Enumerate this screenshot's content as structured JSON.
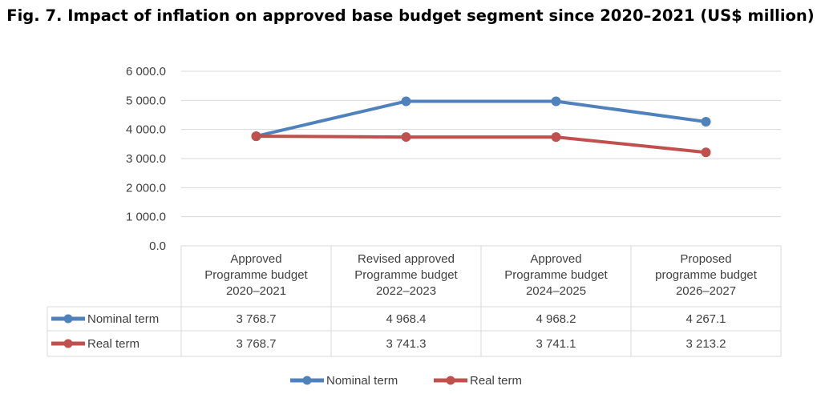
{
  "title": "Fig. 7. Impact of inflation on approved base budget segment since 2020–2021 (US$ million)",
  "chart_data": {
    "type": "line",
    "title": "Fig. 7. Impact of inflation on approved base budget segment since 2020–2021 (US$ million)",
    "categories": [
      [
        "Approved",
        "Programme budget",
        "2020–2021"
      ],
      [
        "Revised approved",
        "Programme budget",
        "2022–2023"
      ],
      [
        "Approved",
        "Programme budget",
        "2024–2025"
      ],
      [
        "Proposed",
        "programme budget",
        "2026–2027"
      ]
    ],
    "series": [
      {
        "name": "Nominal term",
        "color": "#4F81BD",
        "values": [
          3768.7,
          4968.4,
          4968.2,
          4267.1
        ],
        "labels": [
          "3 768.7",
          "4 968.4",
          "4 968.2",
          "4 267.1"
        ]
      },
      {
        "name": "Real term",
        "color": "#C0504D",
        "values": [
          3768.7,
          3741.3,
          3741.1,
          3213.2
        ],
        "labels": [
          "3 768.7",
          "3 741.3",
          "3 741.1",
          "3 213.2"
        ]
      }
    ],
    "ylim": [
      0,
      6000
    ],
    "yticks": [
      0,
      1000,
      2000,
      3000,
      4000,
      5000,
      6000
    ],
    "ytick_labels": [
      "0.0",
      "1 000.0",
      "2 000.0",
      "3 000.0",
      "4 000.0",
      "5 000.0",
      "6 000.0"
    ],
    "grid": true,
    "legend": "bottom",
    "data_table": true
  }
}
